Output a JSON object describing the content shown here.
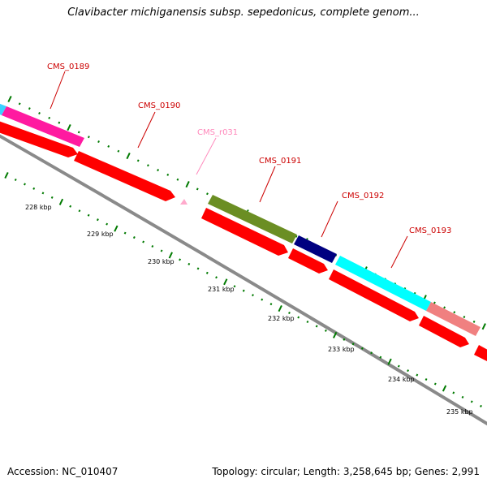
{
  "title": "Clavibacter michiganensis subsp. sepedonicus, complete genom...",
  "footer": {
    "accession": "Accession: NC_010407",
    "summary": "Topology: circular; Length: 3,258,645 bp; Genes: 2,991"
  },
  "colors": {
    "forward_cds": "#ff0000",
    "backbone": "#888888",
    "tick_green": "#007a00",
    "gene_label": "#cc0000",
    "rna_label": "#ff88bb",
    "magenta_feature": "#ff1aa0",
    "olive_feature": "#6b8e23",
    "navy_feature": "#00007a",
    "cyan_feature": "#00ffff",
    "salmon_feature": "#f08080"
  },
  "gene_labels": [
    {
      "id": "CMS_0189",
      "type": "gene"
    },
    {
      "id": "CMS_0190",
      "type": "gene"
    },
    {
      "id": "CMS_r031",
      "type": "rna"
    },
    {
      "id": "CMS_0191",
      "type": "gene"
    },
    {
      "id": "CMS_0192",
      "type": "gene"
    },
    {
      "id": "CMS_0193",
      "type": "gene"
    }
  ],
  "scale_labels": [
    "228 kbp",
    "229 kbp",
    "230 kbp",
    "231 kbp",
    "232 kbp",
    "233 kbp",
    "234 kbp",
    "235 kbp"
  ]
}
